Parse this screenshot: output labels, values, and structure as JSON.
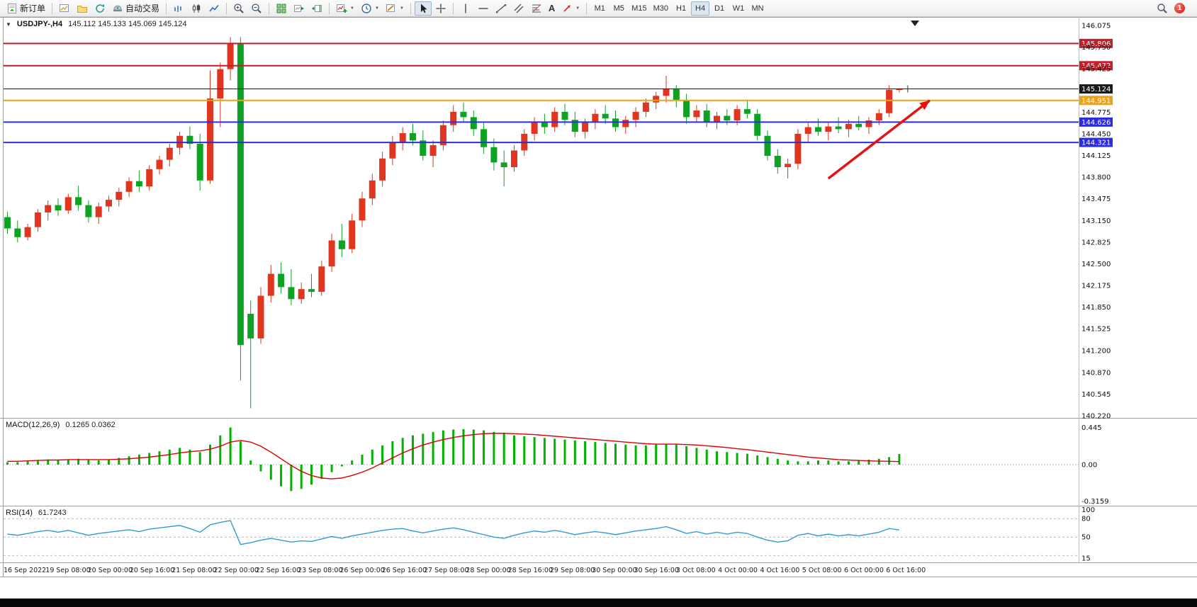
{
  "toolbar": {
    "new_order_label": "新订单",
    "auto_trading_label": "自动交易",
    "text_tool_label": "A",
    "timeframes": [
      "M1",
      "M5",
      "M15",
      "M30",
      "H1",
      "H4",
      "D1",
      "W1",
      "MN"
    ],
    "active_timeframe": "H4",
    "notification_count": "1"
  },
  "chart": {
    "collapse_marker": "▼",
    "title": "USDJPY-,H4",
    "ohlc_readout": "145.112 145.133 145.069 145.124",
    "macd_label": "MACD(12,26,9)",
    "macd_values": "0.1265 0.0362",
    "rsi_label": "RSI(14)",
    "rsi_value": "61.7243"
  },
  "chart_data": {
    "type": "candlestick",
    "symbol": "USDJPY-",
    "timeframe": "H4",
    "up_color": "#e0351f",
    "down_color": "#0ea224",
    "price_axis": {
      "max": 146.075,
      "min": 140.22,
      "ticks": [
        146.075,
        145.75,
        145.425,
        144.775,
        144.45,
        144.125,
        143.8,
        143.475,
        143.15,
        142.825,
        142.5,
        142.175,
        141.85,
        141.525,
        141.2,
        140.87,
        140.545,
        140.22
      ]
    },
    "hlines": [
      {
        "price": 145.806,
        "color": "#c21f2c",
        "width": 2
      },
      {
        "price": 145.472,
        "color": "#c21f2c",
        "width": 2
      },
      {
        "price": 145.124,
        "color": "#1a1a1a",
        "width": 1
      },
      {
        "price": 144.951,
        "color": "#efa116",
        "width": 2
      },
      {
        "price": 144.626,
        "color": "#2d2de0",
        "width": 2
      },
      {
        "price": 144.321,
        "color": "#2d2de0",
        "width": 2
      }
    ],
    "candles": [
      [
        143.2,
        143.28,
        142.95,
        143.03
      ],
      [
        143.03,
        143.15,
        142.82,
        142.9
      ],
      [
        142.9,
        143.1,
        142.85,
        143.05
      ],
      [
        143.05,
        143.32,
        142.98,
        143.27
      ],
      [
        143.27,
        143.45,
        143.15,
        143.38
      ],
      [
        143.38,
        143.48,
        143.22,
        143.3
      ],
      [
        143.3,
        143.55,
        143.25,
        143.5
      ],
      [
        143.5,
        143.67,
        143.3,
        143.38
      ],
      [
        143.38,
        143.45,
        143.12,
        143.2
      ],
      [
        143.2,
        143.42,
        143.1,
        143.36
      ],
      [
        143.36,
        143.52,
        143.28,
        143.46
      ],
      [
        143.46,
        143.64,
        143.36,
        143.58
      ],
      [
        143.58,
        143.8,
        143.5,
        143.74
      ],
      [
        143.74,
        143.9,
        143.58,
        143.66
      ],
      [
        143.66,
        143.98,
        143.6,
        143.92
      ],
      [
        143.92,
        144.12,
        143.84,
        144.06
      ],
      [
        144.06,
        144.3,
        143.96,
        144.24
      ],
      [
        144.24,
        144.48,
        144.14,
        144.42
      ],
      [
        144.42,
        144.56,
        144.22,
        144.3
      ],
      [
        144.3,
        144.45,
        143.6,
        143.75
      ],
      [
        143.75,
        145.4,
        143.7,
        144.98
      ],
      [
        144.98,
        145.52,
        144.55,
        145.42
      ],
      [
        145.42,
        145.9,
        145.25,
        145.8
      ],
      [
        145.8,
        145.9,
        140.75,
        141.28
      ],
      [
        141.75,
        141.95,
        140.33,
        141.38
      ],
      [
        141.38,
        142.15,
        141.3,
        142.02
      ],
      [
        142.02,
        142.48,
        141.92,
        142.35
      ],
      [
        142.35,
        142.52,
        142.05,
        142.15
      ],
      [
        142.15,
        142.42,
        141.88,
        141.97
      ],
      [
        141.97,
        142.22,
        141.9,
        142.12
      ],
      [
        142.12,
        142.35,
        142.0,
        142.08
      ],
      [
        142.08,
        142.55,
        142.02,
        142.46
      ],
      [
        142.46,
        142.95,
        142.38,
        142.85
      ],
      [
        142.85,
        143.1,
        142.6,
        142.72
      ],
      [
        142.72,
        143.25,
        142.66,
        143.15
      ],
      [
        143.15,
        143.58,
        143.05,
        143.48
      ],
      [
        143.48,
        143.85,
        143.38,
        143.75
      ],
      [
        143.75,
        144.18,
        143.66,
        144.08
      ],
      [
        144.08,
        144.42,
        143.98,
        144.32
      ],
      [
        144.32,
        144.55,
        144.2,
        144.46
      ],
      [
        144.46,
        144.6,
        144.28,
        144.35
      ],
      [
        144.35,
        144.5,
        144.05,
        144.12
      ],
      [
        144.12,
        144.35,
        143.95,
        144.28
      ],
      [
        144.28,
        144.65,
        144.2,
        144.58
      ],
      [
        144.58,
        144.88,
        144.48,
        144.78
      ],
      [
        144.78,
        144.92,
        144.62,
        144.7
      ],
      [
        144.7,
        144.8,
        144.42,
        144.52
      ],
      [
        144.52,
        144.62,
        144.15,
        144.25
      ],
      [
        144.25,
        144.38,
        143.9,
        144.02
      ],
      [
        144.02,
        144.2,
        143.66,
        143.95
      ],
      [
        143.95,
        144.28,
        143.88,
        144.2
      ],
      [
        144.2,
        144.52,
        144.12,
        144.45
      ],
      [
        144.45,
        144.7,
        144.35,
        144.62
      ],
      [
        144.62,
        144.75,
        144.45,
        144.55
      ],
      [
        144.55,
        144.85,
        144.48,
        144.78
      ],
      [
        144.78,
        144.9,
        144.58,
        144.66
      ],
      [
        144.66,
        144.78,
        144.4,
        144.48
      ],
      [
        144.48,
        144.68,
        144.38,
        144.62
      ],
      [
        144.62,
        144.82,
        144.52,
        144.75
      ],
      [
        144.75,
        144.88,
        144.6,
        144.68
      ],
      [
        144.68,
        144.8,
        144.48,
        144.55
      ],
      [
        144.55,
        144.72,
        144.45,
        144.66
      ],
      [
        144.66,
        144.85,
        144.55,
        144.78
      ],
      [
        144.78,
        144.98,
        144.7,
        144.92
      ],
      [
        144.92,
        145.08,
        144.82,
        145.02
      ],
      [
        145.02,
        145.32,
        144.92,
        145.12
      ],
      [
        145.12,
        145.18,
        144.85,
        144.95
      ],
      [
        144.95,
        145.05,
        144.6,
        144.7
      ],
      [
        144.7,
        144.88,
        144.62,
        144.8
      ],
      [
        144.8,
        144.9,
        144.55,
        144.62
      ],
      [
        144.62,
        144.78,
        144.52,
        144.72
      ],
      [
        144.72,
        144.82,
        144.58,
        144.65
      ],
      [
        144.65,
        144.88,
        144.58,
        144.82
      ],
      [
        144.82,
        144.95,
        144.68,
        144.75
      ],
      [
        144.75,
        144.82,
        144.35,
        144.42
      ],
      [
        144.42,
        144.5,
        144.05,
        144.12
      ],
      [
        144.12,
        144.22,
        143.85,
        143.95
      ],
      [
        143.95,
        144.08,
        143.78,
        144.0
      ],
      [
        144.0,
        144.52,
        143.92,
        144.45
      ],
      [
        144.45,
        144.62,
        144.32,
        144.55
      ],
      [
        144.55,
        144.68,
        144.42,
        144.48
      ],
      [
        144.48,
        144.62,
        144.35,
        144.56
      ],
      [
        144.56,
        144.7,
        144.46,
        144.52
      ],
      [
        144.52,
        144.66,
        144.4,
        144.6
      ],
      [
        144.6,
        144.72,
        144.5,
        144.55
      ],
      [
        144.55,
        144.7,
        144.45,
        144.65
      ],
      [
        144.65,
        144.82,
        144.58,
        144.76
      ],
      [
        144.76,
        145.18,
        144.7,
        145.11
      ],
      [
        145.112,
        145.133,
        145.069,
        145.124
      ]
    ],
    "time_labels": [
      "16 Sep 2022",
      "19 Sep 08:00",
      "20 Sep 00:00",
      "20 Sep 16:00",
      "21 Sep 08:00",
      "22 Sep 00:00",
      "22 Sep 16:00",
      "23 Sep 08:00",
      "26 Sep 00:00",
      "26 Sep 16:00",
      "27 Sep 08:00",
      "28 Sep 00:00",
      "28 Sep 16:00",
      "29 Sep 08:00",
      "30 Sep 00:00",
      "30 Sep 16:00",
      "3 Oct 08:00",
      "4 Oct 00:00",
      "4 Oct 16:00",
      "5 Oct 08:00",
      "6 Oct 00:00",
      "6 Oct 16:00"
    ],
    "macd": {
      "histogram_color": "#00b300",
      "signal_color": "#dd0000",
      "histogram": [
        0.03,
        0.03,
        0.04,
        0.05,
        0.06,
        0.05,
        0.06,
        0.07,
        0.06,
        0.05,
        0.06,
        0.08,
        0.1,
        0.12,
        0.14,
        0.16,
        0.18,
        0.2,
        0.18,
        0.15,
        0.24,
        0.35,
        0.445,
        0.28,
        0.05,
        -0.08,
        -0.18,
        -0.26,
        -0.3159,
        -0.29,
        -0.24,
        -0.17,
        -0.09,
        -0.02,
        0.05,
        0.12,
        0.18,
        0.23,
        0.28,
        0.32,
        0.35,
        0.37,
        0.39,
        0.41,
        0.42,
        0.425,
        0.42,
        0.41,
        0.39,
        0.37,
        0.35,
        0.34,
        0.33,
        0.32,
        0.31,
        0.3,
        0.29,
        0.28,
        0.27,
        0.26,
        0.25,
        0.24,
        0.23,
        0.23,
        0.24,
        0.25,
        0.24,
        0.22,
        0.2,
        0.18,
        0.16,
        0.15,
        0.14,
        0.13,
        0.11,
        0.09,
        0.07,
        0.05,
        0.04,
        0.04,
        0.05,
        0.05,
        0.04,
        0.04,
        0.05,
        0.06,
        0.07,
        0.09,
        0.1265
      ],
      "signal": [
        0.04,
        0.04,
        0.045,
        0.05,
        0.055,
        0.055,
        0.06,
        0.06,
        0.06,
        0.06,
        0.06,
        0.065,
        0.07,
        0.08,
        0.09,
        0.105,
        0.12,
        0.14,
        0.155,
        0.165,
        0.185,
        0.22,
        0.27,
        0.29,
        0.27,
        0.22,
        0.15,
        0.07,
        -0.01,
        -0.08,
        -0.13,
        -0.16,
        -0.17,
        -0.16,
        -0.13,
        -0.09,
        -0.04,
        0.02,
        0.08,
        0.14,
        0.19,
        0.235,
        0.27,
        0.3,
        0.325,
        0.345,
        0.36,
        0.37,
        0.375,
        0.375,
        0.37,
        0.365,
        0.36,
        0.35,
        0.34,
        0.33,
        0.32,
        0.31,
        0.3,
        0.29,
        0.28,
        0.27,
        0.26,
        0.25,
        0.245,
        0.245,
        0.245,
        0.24,
        0.235,
        0.225,
        0.215,
        0.205,
        0.19,
        0.18,
        0.165,
        0.15,
        0.135,
        0.12,
        0.105,
        0.09,
        0.08,
        0.07,
        0.06,
        0.055,
        0.05,
        0.045,
        0.042,
        0.04,
        0.0362
      ],
      "axis_ticks": [
        {
          "label": "0.445",
          "value": 0.445
        },
        {
          "label": "0.00",
          "value": 0
        },
        {
          "label": "-0.3159",
          "value": -0.3159
        }
      ]
    },
    "rsi": {
      "color": "#2f9bd6",
      "levels": [
        80,
        50,
        20
      ],
      "values": [
        55,
        53,
        56,
        59,
        61,
        58,
        61,
        57,
        53,
        56,
        58,
        60,
        62,
        59,
        63,
        65,
        67,
        69,
        64,
        58,
        70,
        74,
        77,
        38,
        41,
        45,
        48,
        45,
        42,
        44,
        43,
        47,
        51,
        48,
        52,
        55,
        58,
        61,
        63,
        64,
        60,
        57,
        60,
        63,
        65,
        62,
        58,
        54,
        50,
        48,
        53,
        57,
        60,
        58,
        61,
        58,
        54,
        57,
        59,
        57,
        54,
        57,
        60,
        62,
        64,
        67,
        62,
        56,
        59,
        55,
        58,
        55,
        58,
        56,
        50,
        45,
        42,
        44,
        53,
        56,
        52,
        55,
        52,
        54,
        52,
        55,
        58,
        64,
        61.72
      ],
      "axis_ticks": [
        {
          "label": "100",
          "value": 100
        },
        {
          "label": "80",
          "value": 80
        },
        {
          "label": "50",
          "value": 50
        },
        {
          "label": "15",
          "value": 15
        }
      ]
    },
    "arrow": {
      "from_index": 81,
      "from_price": 143.78,
      "to_index": 91,
      "to_price": 144.95,
      "color": "#e61212"
    }
  }
}
